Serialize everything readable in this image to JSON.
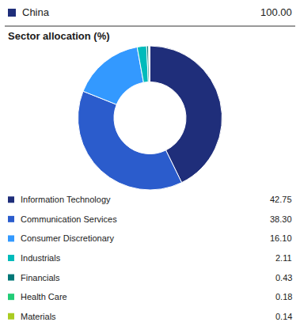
{
  "chart_data": {
    "type": "donut",
    "title": "Sector allocation (%)",
    "annotations": [
      "China",
      "100.00"
    ],
    "categories": [
      "Information Technology",
      "Communication Services",
      "Consumer Discretionary",
      "Industrials",
      "Financials",
      "Health Care",
      "Materials"
    ],
    "values": [
      42.75,
      38.3,
      16.1,
      2.11,
      0.43,
      0.18,
      0.14
    ],
    "value_labels": [
      "42.75",
      "38.30",
      "16.10",
      "2.11",
      "0.43",
      "0.18",
      "0.14"
    ],
    "colors": [
      "#1f2e7a",
      "#2b5ccc",
      "#3399ff",
      "#00bbbb",
      "#007777",
      "#22cc77",
      "#aacc22"
    ]
  }
}
